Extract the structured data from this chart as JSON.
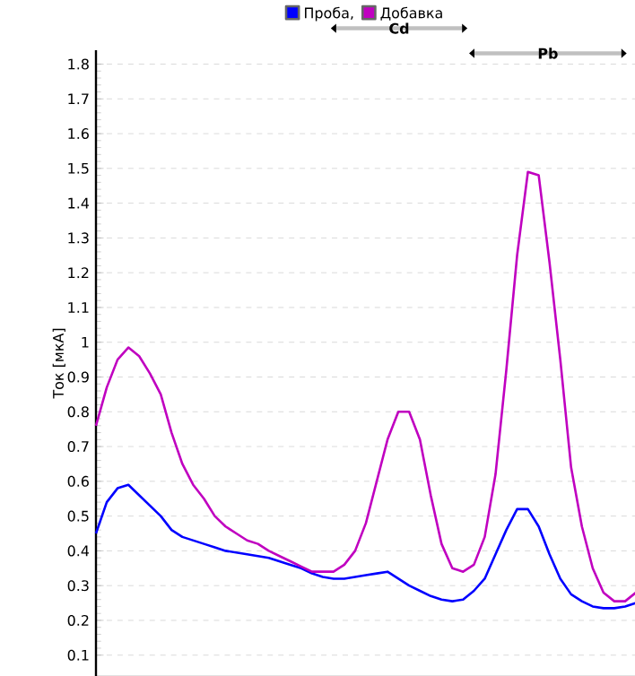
{
  "chart_data": {
    "type": "line",
    "ylabel": "Ток [мкА]",
    "categories": [
      null,
      null,
      null,
      null,
      null,
      null,
      null,
      null,
      null,
      null,
      null,
      null,
      null,
      null,
      null,
      null,
      null,
      null,
      null,
      null,
      null,
      null,
      null,
      null,
      null,
      null,
      null,
      null,
      null,
      null,
      null,
      null,
      null,
      null,
      null,
      null,
      null,
      null,
      null,
      null,
      null,
      null,
      null,
      null,
      null,
      null,
      null,
      null,
      null,
      null,
      null
    ],
    "ylim": [
      0.04,
      1.84
    ],
    "yticks": [
      0.1,
      0.2,
      0.3,
      0.4,
      0.5,
      0.6,
      0.7,
      0.8,
      0.9,
      1,
      1.1,
      1.2,
      1.3,
      1.4,
      1.5,
      1.6,
      1.7,
      1.8
    ],
    "tick_labels": "y",
    "grid": "y",
    "legend": "top",
    "marker": "none",
    "line_style": "solid",
    "annotations": [
      "Cd",
      "Pb"
    ],
    "series": [
      {
        "name": "Проба,",
        "color": "#0000ff",
        "values": [
          0.45,
          0.54,
          0.58,
          0.59,
          0.56,
          0.53,
          0.5,
          0.46,
          0.44,
          0.43,
          0.42,
          0.41,
          0.4,
          0.395,
          0.39,
          0.385,
          0.38,
          0.37,
          0.36,
          0.35,
          0.335,
          0.325,
          0.32,
          0.32,
          0.325,
          0.33,
          0.335,
          0.34,
          0.32,
          0.3,
          0.285,
          0.27,
          0.26,
          0.255,
          0.26,
          0.285,
          0.32,
          0.39,
          0.46,
          0.52,
          0.52,
          0.47,
          0.39,
          0.32,
          0.275,
          0.255,
          0.24,
          0.235,
          0.235,
          0.24,
          0.25
        ]
      },
      {
        "name": "Добавка",
        "color": "#c000c0",
        "values": [
          0.76,
          0.87,
          0.95,
          0.985,
          0.96,
          0.91,
          0.85,
          0.74,
          0.65,
          0.59,
          0.55,
          0.5,
          0.47,
          0.45,
          0.43,
          0.42,
          0.4,
          0.385,
          0.37,
          0.355,
          0.34,
          0.34,
          0.34,
          0.36,
          0.4,
          0.48,
          0.6,
          0.72,
          0.8,
          0.8,
          0.72,
          0.56,
          0.42,
          0.35,
          0.34,
          0.36,
          0.44,
          0.62,
          0.92,
          1.25,
          1.49,
          1.48,
          1.23,
          0.95,
          0.64,
          0.47,
          0.35,
          0.28,
          0.255,
          0.255,
          0.28
        ]
      }
    ]
  }
}
